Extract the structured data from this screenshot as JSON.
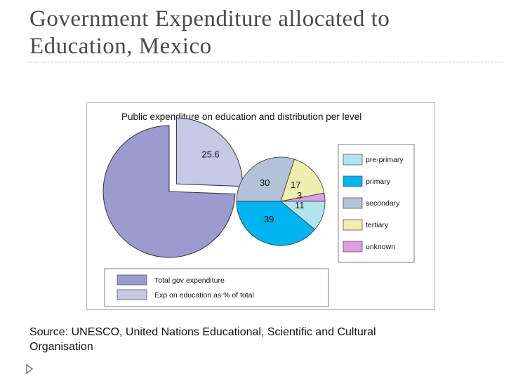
{
  "slide": {
    "title_line1": "Government Expenditure allocated to",
    "title_line2": "Education, Mexico",
    "source_line1": "Source: UNESCO, United Nations Educational, Scientific and Cultural",
    "source_line2": "Organisation",
    "bullet_icon": "triangle-bullet-icon"
  },
  "chart_data": {
    "type": "pie",
    "title": "Public expenditure on education and distribution per level",
    "charts": [
      {
        "type": "pie",
        "categories": [
          "Total gov expenditure",
          "Exp on education as % of total"
        ],
        "values": [
          74.4,
          25.6
        ],
        "labels": [
          "",
          "25.6"
        ],
        "colors": [
          "#9b9bcf",
          "#c7c7e6"
        ],
        "exploded": [
          false,
          true
        ]
      },
      {
        "type": "pie",
        "categories": [
          "pre-primary",
          "primary",
          "secondary",
          "tertiary",
          "unknown"
        ],
        "values": [
          11,
          39,
          30,
          17,
          3
        ],
        "labels": [
          "11",
          "39",
          "30",
          "17",
          "3"
        ],
        "colors": [
          "#b2e4ee",
          "#00b4f0",
          "#b3c2d8",
          "#efedb0",
          "#dd9fe0"
        ]
      }
    ],
    "legend_right": [
      "pre-primary",
      "primary",
      "secondary",
      "tertiary",
      "unknown"
    ],
    "legend_bottom": [
      "Total gov expenditure",
      "Exp on education as % of total"
    ],
    "legend_placement": [
      "right",
      "bottom"
    ]
  }
}
